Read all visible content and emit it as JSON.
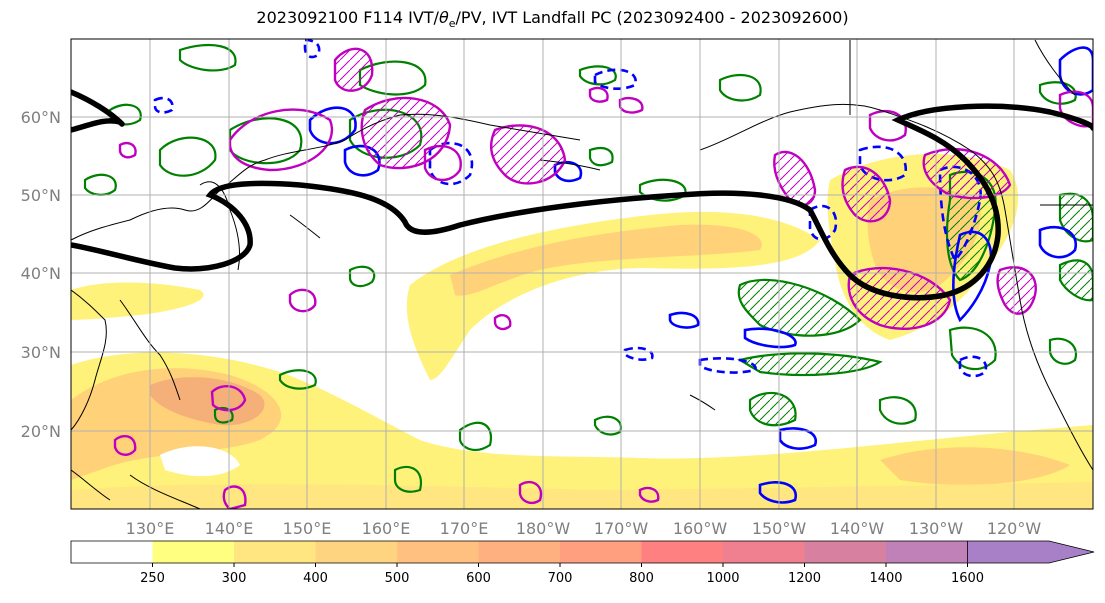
{
  "title_prefix": "2023092100 F114 IVT/",
  "title_theta": "θ",
  "title_sub": "e",
  "title_suffix": "/PV, IVT Landfall PC (2023092400 - 2023092600)",
  "lat_labels": [
    "60°N",
    "50°N",
    "40°N",
    "30°N",
    "20°N"
  ],
  "lon_labels": [
    "130°E",
    "140°E",
    "150°E",
    "160°E",
    "170°E",
    "180°W",
    "170°W",
    "160°W",
    "150°W",
    "140°W",
    "130°W",
    "120°W"
  ],
  "colorbar": {
    "levels": [
      "250",
      "300",
      "400",
      "500",
      "600",
      "700",
      "800",
      "1000",
      "1200",
      "1400",
      "1600"
    ],
    "colors": [
      "#ffffff",
      "#ffff80",
      "#ffe680",
      "#ffd480",
      "#ffc080",
      "#ffb080",
      "#ff9f80",
      "#ff8080",
      "#f07f8f",
      "#d880a0",
      "#c080b8",
      "#a880c8"
    ]
  },
  "colors": {
    "ivt_light": "#fff27a",
    "ivt_medium": "#ffd27a",
    "ivt_dark": "#f5b07a",
    "pv_contour": "#000000",
    "green_contour": "#008000",
    "blue_contour": "#0000ff",
    "magenta_contour": "#bf00bf"
  }
}
